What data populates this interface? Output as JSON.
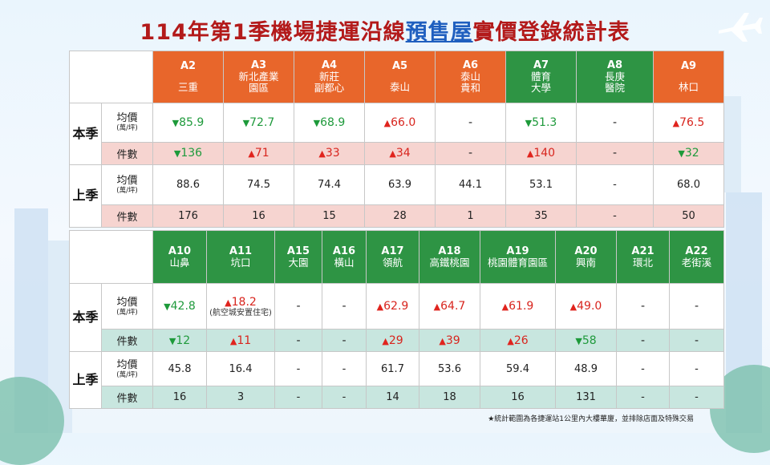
{
  "title": {
    "part1": "114年第1季機場捷運沿線",
    "highlight": "預售屋",
    "part2": "實價登錄統計表"
  },
  "colors": {
    "up": "#e0241e",
    "down": "#1d9a3a",
    "header_orange": "#e8662b",
    "header_green": "#2e9444"
  },
  "labels": {
    "this_season": "本季",
    "last_season": "上季",
    "avg_price": "均價",
    "avg_unit": "(萬/坪)",
    "count": "件數"
  },
  "table1": {
    "stations": [
      {
        "code": "A2",
        "name1": "",
        "name2": "三重"
      },
      {
        "code": "A3",
        "name1": "新北產業",
        "name2": "園區"
      },
      {
        "code": "A4",
        "name1": "新莊",
        "name2": "副都心"
      },
      {
        "code": "A5",
        "name1": "",
        "name2": "泰山"
      },
      {
        "code": "A6",
        "name1": "泰山",
        "name2": "貴和"
      },
      {
        "code": "A7",
        "name1": "體育",
        "name2": "大學"
      },
      {
        "code": "A8",
        "name1": "長庚",
        "name2": "醫院"
      },
      {
        "code": "A9",
        "name1": "",
        "name2": "林口"
      }
    ],
    "this_avg": [
      {
        "arrow": "▼",
        "value": "85.9"
      },
      {
        "arrow": "▼",
        "value": "72.7"
      },
      {
        "arrow": "▼",
        "value": "68.9"
      },
      {
        "arrow": "▲",
        "value": "66.0"
      },
      {
        "arrow": "",
        "value": "-"
      },
      {
        "arrow": "▼",
        "value": "51.3"
      },
      {
        "arrow": "",
        "value": "-"
      },
      {
        "arrow": "▲",
        "value": "76.5"
      }
    ],
    "this_count": [
      {
        "arrow": "▼",
        "value": "136"
      },
      {
        "arrow": "▲",
        "value": "71"
      },
      {
        "arrow": "▲",
        "value": "33"
      },
      {
        "arrow": "▲",
        "value": "34"
      },
      {
        "arrow": "",
        "value": "-"
      },
      {
        "arrow": "▲",
        "value": "140"
      },
      {
        "arrow": "",
        "value": "-"
      },
      {
        "arrow": "▼",
        "value": "32"
      }
    ],
    "last_avg": [
      "88.6",
      "74.5",
      "74.4",
      "63.9",
      "44.1",
      "53.1",
      "-",
      "68.0"
    ],
    "last_count": [
      "176",
      "16",
      "15",
      "28",
      "1",
      "35",
      "-",
      "50"
    ]
  },
  "table2": {
    "stations": [
      {
        "code": "A10",
        "name": "山鼻"
      },
      {
        "code": "A11",
        "name": "坑口"
      },
      {
        "code": "A15",
        "name": "大園"
      },
      {
        "code": "A16",
        "name": "橫山"
      },
      {
        "code": "A17",
        "name": "領航"
      },
      {
        "code": "A18",
        "name": "高鐵桃園"
      },
      {
        "code": "A19",
        "name": "桃園體育園區"
      },
      {
        "code": "A20",
        "name": "興南"
      },
      {
        "code": "A21",
        "name": "環北"
      },
      {
        "code": "A22",
        "name": "老街溪"
      }
    ],
    "this_avg": [
      {
        "arrow": "▼",
        "value": "42.8",
        "note": ""
      },
      {
        "arrow": "▲",
        "value": "18.2",
        "note": "(航空城安置住宅)"
      },
      {
        "arrow": "",
        "value": "-",
        "note": ""
      },
      {
        "arrow": "",
        "value": "-",
        "note": ""
      },
      {
        "arrow": "▲",
        "value": "62.9",
        "note": ""
      },
      {
        "arrow": "▲",
        "value": "64.7",
        "note": ""
      },
      {
        "arrow": "▲",
        "value": "61.9",
        "note": ""
      },
      {
        "arrow": "▲",
        "value": "49.0",
        "note": ""
      },
      {
        "arrow": "",
        "value": "-",
        "note": ""
      },
      {
        "arrow": "",
        "value": "-",
        "note": ""
      }
    ],
    "this_count": [
      {
        "arrow": "▼",
        "value": "12"
      },
      {
        "arrow": "▲",
        "value": "11"
      },
      {
        "arrow": "",
        "value": "-"
      },
      {
        "arrow": "",
        "value": "-"
      },
      {
        "arrow": "▲",
        "value": "29"
      },
      {
        "arrow": "▲",
        "value": "39"
      },
      {
        "arrow": "▲",
        "value": "26"
      },
      {
        "arrow": "▼",
        "value": "58"
      },
      {
        "arrow": "",
        "value": "-"
      },
      {
        "arrow": "",
        "value": "-"
      }
    ],
    "last_avg": [
      "45.8",
      "16.4",
      "-",
      "-",
      "61.7",
      "53.6",
      "59.4",
      "48.9",
      "-",
      "-"
    ],
    "last_count": [
      "16",
      "3",
      "-",
      "-",
      "14",
      "18",
      "16",
      "131",
      "-",
      "-"
    ]
  },
  "footnote": "★統計範圍為各捷運站1公里內大樓華廈，並排除店面及特殊交易",
  "decor": {
    "plane_icon": "airplane-icon"
  }
}
